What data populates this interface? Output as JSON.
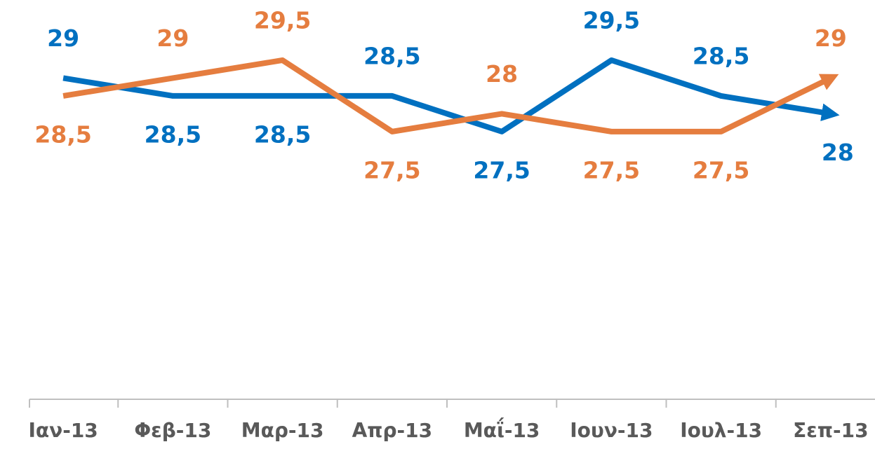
{
  "chart_data": {
    "type": "line",
    "categories": [
      "Ιαν-13",
      "Φεβ-13",
      "Μαρ-13",
      "Απρ-13",
      "Μαΐ-13",
      "Ιουν-13",
      "Ιουλ-13",
      "Σεπ-13"
    ],
    "ylim": [
      20,
      30
    ],
    "series": [
      {
        "color": "#0070c0",
        "values": [
          29,
          28.5,
          28.5,
          28.5,
          27.5,
          29.5,
          28.5,
          28
        ],
        "value_labels": [
          "29",
          "28,5",
          "28,5",
          "28,5",
          "27,5",
          "29,5",
          "28,5",
          "28"
        ]
      },
      {
        "color": "#e57d3f",
        "values": [
          28.5,
          29,
          29.5,
          27.5,
          28,
          27.5,
          27.5,
          29
        ],
        "value_labels": [
          "28,5",
          "29",
          "29,5",
          "27,5",
          "28",
          "27,5",
          "27,5",
          "29"
        ]
      }
    ]
  }
}
